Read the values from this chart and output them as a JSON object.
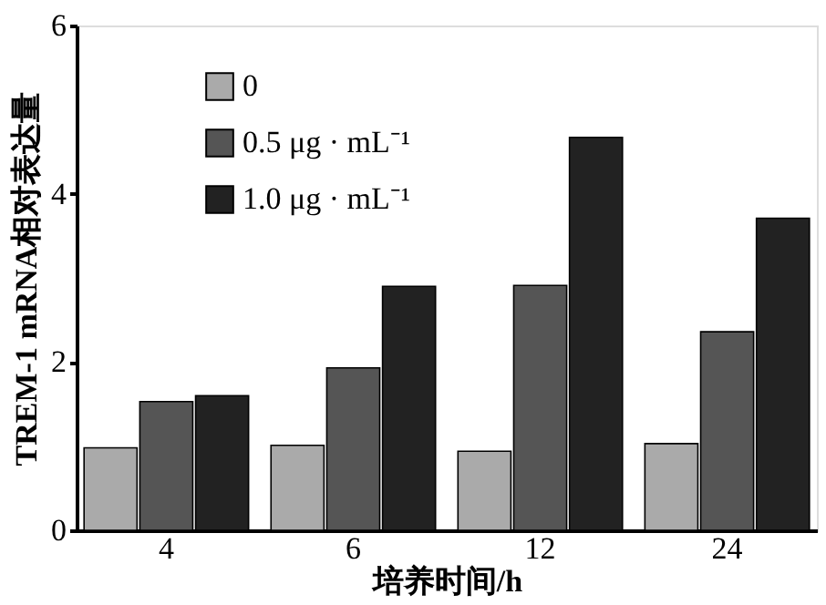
{
  "chart_data": {
    "type": "bar",
    "xlabel": "培养时间/h",
    "ylabel": "TREM-1 mRNA相对表达量",
    "categories": [
      "4",
      "6",
      "12",
      "24"
    ],
    "series": [
      {
        "name": "0",
        "color": "#aaaaaa",
        "values": [
          0.98,
          1.01,
          0.94,
          1.03
        ]
      },
      {
        "name": "0.5 μg · mL⁻¹",
        "color": "#555555",
        "values": [
          1.53,
          1.93,
          2.91,
          2.36
        ]
      },
      {
        "name": "1.0 μg · mL⁻¹",
        "color": "#222222",
        "values": [
          1.6,
          2.9,
          4.67,
          3.71
        ]
      }
    ],
    "ylim": [
      0,
      6
    ],
    "yticks": [
      0,
      2,
      4,
      6
    ],
    "grid": false,
    "legend": "top left"
  }
}
